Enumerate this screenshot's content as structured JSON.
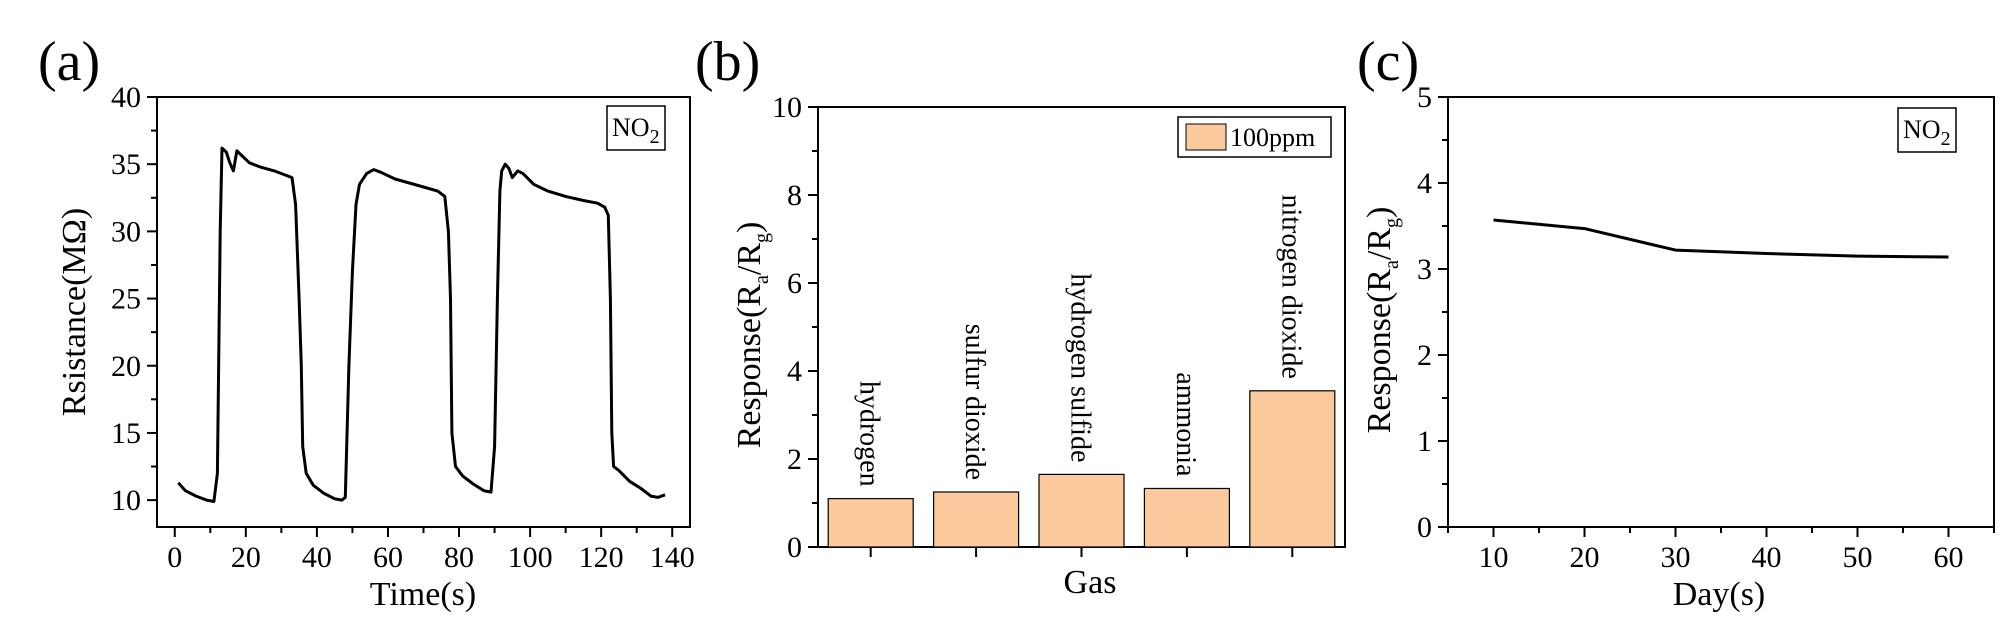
{
  "chart_data": [
    {
      "panel": "(a)",
      "type": "line",
      "xlabel": "Time(s)",
      "ylabel": "Rsistance(MΩ)",
      "xlim": [
        -5,
        145
      ],
      "ylim": [
        8,
        40
      ],
      "xticks": [
        0,
        20,
        40,
        60,
        80,
        100,
        120,
        140
      ],
      "yticks": [
        10,
        15,
        20,
        25,
        30,
        35,
        40
      ],
      "annotation": {
        "main": "NO",
        "sub": "2"
      },
      "series": [
        {
          "name": "resistance",
          "points": [
            [
              1,
              11.3
            ],
            [
              3,
              10.7
            ],
            [
              6,
              10.3
            ],
            [
              9,
              10.0
            ],
            [
              11,
              9.9
            ],
            [
              12,
              12
            ],
            [
              12.8,
              30
            ],
            [
              13.3,
              36.2
            ],
            [
              14.5,
              35.9
            ],
            [
              15.5,
              35.1
            ],
            [
              16.5,
              34.5
            ],
            [
              17.5,
              36.0
            ],
            [
              19,
              35.6
            ],
            [
              21,
              35.1
            ],
            [
              24,
              34.8
            ],
            [
              28,
              34.5
            ],
            [
              31,
              34.2
            ],
            [
              33,
              34.0
            ],
            [
              34,
              32
            ],
            [
              35,
              25
            ],
            [
              35.6,
              20
            ],
            [
              36,
              14
            ],
            [
              37,
              12
            ],
            [
              39,
              11.1
            ],
            [
              42,
              10.5
            ],
            [
              45,
              10.1
            ],
            [
              47,
              10.0
            ],
            [
              48,
              10.2
            ],
            [
              49,
              20
            ],
            [
              50,
              27
            ],
            [
              51,
              32
            ],
            [
              52,
              33.5
            ],
            [
              54,
              34.3
            ],
            [
              56,
              34.6
            ],
            [
              58,
              34.4
            ],
            [
              62,
              33.9
            ],
            [
              66,
              33.6
            ],
            [
              70,
              33.3
            ],
            [
              74,
              33.0
            ],
            [
              76,
              32.6
            ],
            [
              77,
              30
            ],
            [
              77.6,
              25
            ],
            [
              78,
              15
            ],
            [
              79,
              12.5
            ],
            [
              81,
              11.8
            ],
            [
              84,
              11.2
            ],
            [
              87,
              10.7
            ],
            [
              89,
              10.6
            ],
            [
              90,
              14
            ],
            [
              90.8,
              25
            ],
            [
              91.5,
              33
            ],
            [
              92,
              34.5
            ],
            [
              93,
              35.0
            ],
            [
              94,
              34.7
            ],
            [
              95,
              34.0
            ],
            [
              96.5,
              34.5
            ],
            [
              98,
              34.3
            ],
            [
              101,
              33.5
            ],
            [
              105,
              33.0
            ],
            [
              110,
              32.6
            ],
            [
              115,
              32.3
            ],
            [
              119,
              32.1
            ],
            [
              121,
              31.8
            ],
            [
              122,
              31.2
            ],
            [
              122.6,
              25
            ],
            [
              123,
              15
            ],
            [
              123.5,
              12.5
            ],
            [
              125,
              12.2
            ],
            [
              128,
              11.4
            ],
            [
              131,
              10.9
            ],
            [
              134,
              10.3
            ],
            [
              136,
              10.2
            ],
            [
              138,
              10.4
            ]
          ]
        }
      ]
    },
    {
      "panel": "(b)",
      "type": "bar",
      "xlabel": "Gas",
      "ylabel": "Response(R",
      "ylim": [
        0,
        10
      ],
      "yticks": [
        0,
        2,
        4,
        6,
        8,
        10
      ],
      "categories": [
        "hydrogen",
        "sulfur dioxide",
        "hydrogen sulfide",
        "ammonia",
        "nitrogen dioxide"
      ],
      "values": [
        1.1,
        1.25,
        1.65,
        1.33,
        3.55
      ],
      "legend": "100ppm",
      "bar_color": "#fbc99b"
    },
    {
      "panel": "(c)",
      "type": "line",
      "xlabel": "Day(s)",
      "ylabel": "Response(R",
      "xlim": [
        5,
        65
      ],
      "ylim": [
        0,
        5
      ],
      "xticks": [
        10,
        20,
        30,
        40,
        50,
        60
      ],
      "yticks": [
        0,
        1,
        2,
        3,
        4,
        5
      ],
      "annotation": {
        "main": "NO",
        "sub": "2"
      },
      "series": [
        {
          "name": "response",
          "points": [
            [
              10,
              3.57
            ],
            [
              20,
              3.47
            ],
            [
              30,
              3.22
            ],
            [
              40,
              3.18
            ],
            [
              50,
              3.15
            ],
            [
              60,
              3.14
            ]
          ]
        }
      ]
    }
  ],
  "ylabel_subscripts": {
    "a": "a",
    "g": "g",
    "slash": "/",
    "close": ")"
  }
}
